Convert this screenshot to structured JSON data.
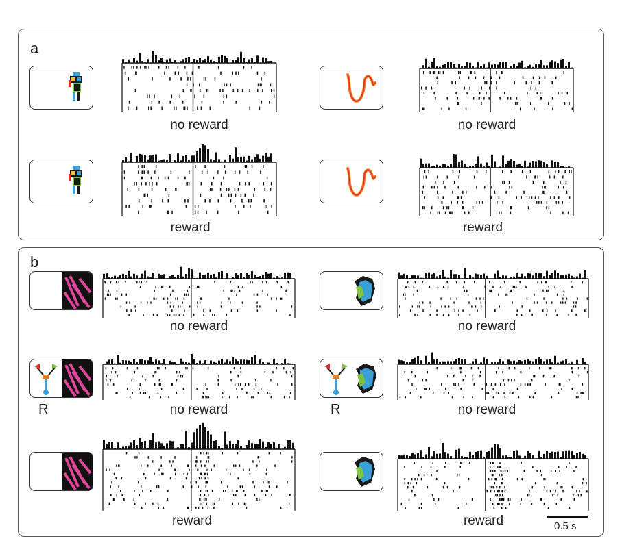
{
  "panels": {
    "a": {
      "label": "a"
    },
    "b": {
      "label": "b"
    }
  },
  "conditions": {
    "a_left_top": "no reward",
    "a_right_top": "no reward",
    "a_left_bottom": "reward",
    "a_right_bottom": "reward",
    "b_left_1": "no reward",
    "b_right_1": "no reward",
    "b_left_2": "no reward",
    "b_right_2": "no reward",
    "b_left_3": "reward",
    "b_right_3": "reward"
  },
  "marks": {
    "response_left": "R",
    "response_right": "R"
  },
  "scale_bar": {
    "label": "0.5 s"
  },
  "colors": {
    "stim_magenta": "#e0479a",
    "stim_blue": "#3aa0d8",
    "stim_green": "#7dc243",
    "stim_orange": "#f07c1e",
    "stim_red": "#e0302a",
    "stim_dark": "#1a1a1a",
    "tick_color": "#111111"
  },
  "icons": [
    "robot-figure-icon",
    "squiggle-curve-icon",
    "magenta-texture-icon",
    "blue-green-shape-icon",
    "manipulandum-icon"
  ],
  "chart_data": [
    {
      "type": "raster-psth",
      "panel": "a",
      "condition": "no reward",
      "stimulus": "robot-figure",
      "trials": 8,
      "response_peak": "none"
    },
    {
      "type": "raster-psth",
      "panel": "a",
      "condition": "no reward",
      "stimulus": "squiggle-curve",
      "trials": 8,
      "response_peak": "none"
    },
    {
      "type": "raster-psth",
      "panel": "a",
      "condition": "reward",
      "stimulus": "robot-figure",
      "trials": 9,
      "response_peak": "just after cue"
    },
    {
      "type": "raster-psth",
      "panel": "a",
      "condition": "reward",
      "stimulus": "squiggle-curve",
      "trials": 9,
      "response_peak": "none"
    },
    {
      "type": "raster-psth",
      "panel": "b",
      "condition": "no reward",
      "stimulus": "magenta-texture",
      "trials": 9,
      "response_peak": "none"
    },
    {
      "type": "raster-psth",
      "panel": "b",
      "condition": "no reward",
      "stimulus": "blue-green-shape",
      "trials": 9,
      "response_peak": "none"
    },
    {
      "type": "raster-psth",
      "panel": "b",
      "condition": "no reward",
      "stimulus": "magenta-texture",
      "response_required": true,
      "trials": 8,
      "response_peak": "none"
    },
    {
      "type": "raster-psth",
      "panel": "b",
      "condition": "no reward",
      "stimulus": "blue-green-shape",
      "response_required": true,
      "trials": 8,
      "response_peak": "none"
    },
    {
      "type": "raster-psth",
      "panel": "b",
      "condition": "reward",
      "stimulus": "magenta-texture",
      "trials": 14,
      "response_peak": "strong, just after cue"
    },
    {
      "type": "raster-psth",
      "panel": "b",
      "condition": "reward",
      "stimulus": "blue-green-shape",
      "trials": 12,
      "response_peak": "moderate, just after cue"
    }
  ]
}
